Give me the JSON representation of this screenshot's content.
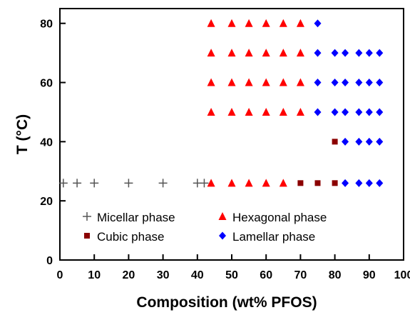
{
  "chart_data": {
    "type": "scatter",
    "xlabel": "Composition (wt% PFOS)",
    "ylabel": "T (°C)",
    "xlim": [
      0,
      100
    ],
    "ylim": [
      0,
      85
    ],
    "xticks": [
      "0",
      "10",
      "20",
      "30",
      "40",
      "50",
      "60",
      "70",
      "80",
      "90",
      "100"
    ],
    "yticks": [
      "0",
      "20",
      "40",
      "60",
      "80"
    ],
    "grid": false,
    "legend_placement": "bottom",
    "series": [
      {
        "name": "Micellar phase",
        "marker": "plus",
        "color": "#555555",
        "points": [
          [
            1,
            26
          ],
          [
            5,
            26
          ],
          [
            10,
            26
          ],
          [
            20,
            26
          ],
          [
            30,
            26
          ],
          [
            40,
            26
          ],
          [
            42,
            26
          ]
        ]
      },
      {
        "name": "Hexagonal phase",
        "marker": "triangle",
        "color": "#ff0000",
        "points": [
          [
            44,
            26
          ],
          [
            50,
            26
          ],
          [
            55,
            26
          ],
          [
            60,
            26
          ],
          [
            65,
            26
          ],
          [
            44,
            50
          ],
          [
            50,
            50
          ],
          [
            55,
            50
          ],
          [
            60,
            50
          ],
          [
            65,
            50
          ],
          [
            70,
            50
          ],
          [
            44,
            60
          ],
          [
            50,
            60
          ],
          [
            55,
            60
          ],
          [
            60,
            60
          ],
          [
            65,
            60
          ],
          [
            70,
            60
          ],
          [
            44,
            70
          ],
          [
            50,
            70
          ],
          [
            55,
            70
          ],
          [
            60,
            70
          ],
          [
            65,
            70
          ],
          [
            70,
            70
          ],
          [
            44,
            80
          ],
          [
            50,
            80
          ],
          [
            55,
            80
          ],
          [
            60,
            80
          ],
          [
            65,
            80
          ],
          [
            70,
            80
          ]
        ]
      },
      {
        "name": "Cubic phase",
        "marker": "square",
        "color": "#8b0000",
        "points": [
          [
            70,
            26
          ],
          [
            75,
            26
          ],
          [
            80,
            26
          ],
          [
            80,
            40
          ]
        ]
      },
      {
        "name": "Lamellar phase",
        "marker": "diamond",
        "color": "#0000ff",
        "points": [
          [
            83,
            26
          ],
          [
            87,
            26
          ],
          [
            90,
            26
          ],
          [
            93,
            26
          ],
          [
            83,
            40
          ],
          [
            87,
            40
          ],
          [
            90,
            40
          ],
          [
            93,
            40
          ],
          [
            75,
            50
          ],
          [
            80,
            50
          ],
          [
            83,
            50
          ],
          [
            87,
            50
          ],
          [
            90,
            50
          ],
          [
            93,
            50
          ],
          [
            75,
            60
          ],
          [
            80,
            60
          ],
          [
            83,
            60
          ],
          [
            87,
            60
          ],
          [
            90,
            60
          ],
          [
            93,
            60
          ],
          [
            75,
            70
          ],
          [
            80,
            70
          ],
          [
            83,
            70
          ],
          [
            87,
            70
          ],
          [
            90,
            70
          ],
          [
            93,
            70
          ],
          [
            75,
            80
          ]
        ]
      }
    ]
  }
}
